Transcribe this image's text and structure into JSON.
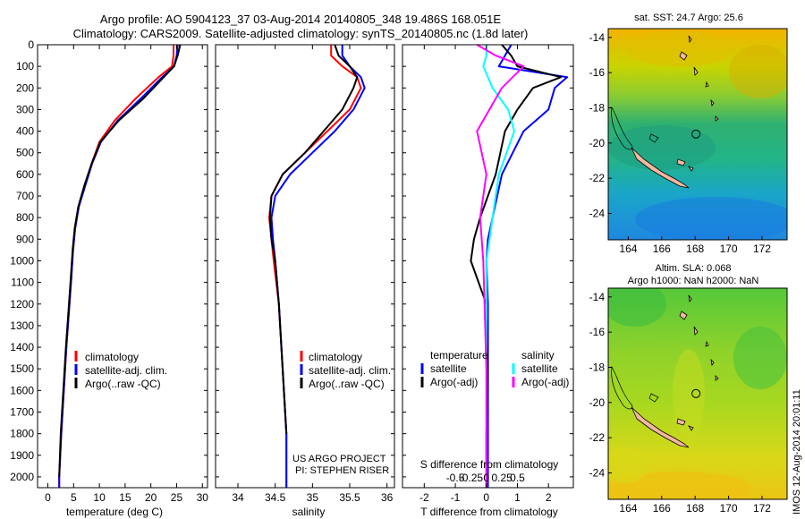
{
  "title": {
    "line1": "Argo profile: AO 5904123_37 03-Aug-2014 20140805_348 19.486S 168.051E",
    "line2": "Climatology: CARS2009. Satellite-adjusted climatology: synTS_20140805.nc (1.8d later)"
  },
  "depth_ticks": [
    0,
    100,
    200,
    300,
    400,
    500,
    600,
    700,
    800,
    900,
    1000,
    1100,
    1200,
    1300,
    1400,
    1500,
    1600,
    1700,
    1800,
    1900,
    2000
  ],
  "colors": {
    "climatology": "#ff0000",
    "satellite": "#0000ff",
    "argo": "#000000",
    "sal_satellite": "#00ffff",
    "sal_argo": "#ff00ff"
  },
  "chart_data": [
    {
      "type": "line",
      "xlabel": "temperature (deg C)",
      "xlim": [
        -2,
        31
      ],
      "xticks": [
        0,
        5,
        10,
        15,
        20,
        25,
        30
      ],
      "ylim": [
        2050,
        0
      ],
      "legend": {
        "placement": "center-left",
        "entries": [
          "climatology",
          "satellite-adj. clim.",
          "Argo(..raw -QC)"
        ]
      },
      "series": [
        {
          "name": "climatology",
          "color": "#ff0000",
          "x": [
            24.4,
            24.4,
            24.1,
            21.5,
            17.0,
            13.0,
            10.0,
            8.5,
            7.2,
            6.0,
            5.3,
            4.9,
            4.5,
            3.6,
            2.6,
            2.2,
            2.2
          ],
          "y": [
            0,
            50,
            100,
            150,
            250,
            350,
            450,
            550,
            650,
            750,
            850,
            950,
            1100,
            1400,
            1800,
            2000,
            2050
          ]
        },
        {
          "name": "satellite-adj. clim.",
          "color": "#0000ff",
          "x": [
            25.2,
            25.0,
            24.5,
            22.2,
            18.0,
            13.6,
            10.3,
            8.6,
            7.3,
            6.0,
            5.3,
            4.9,
            4.5,
            3.6,
            2.6,
            2.2,
            2.2
          ],
          "y": [
            0,
            50,
            100,
            150,
            250,
            350,
            450,
            550,
            650,
            750,
            850,
            950,
            1100,
            1400,
            1800,
            2000,
            2050
          ]
        },
        {
          "name": "Argo(..raw -QC)",
          "color": "#000000",
          "x": [
            25.7,
            25.2,
            24.5,
            22.5,
            18.5,
            13.8,
            10.2,
            8.5,
            7.1,
            5.9,
            5.2,
            4.8,
            4.4,
            3.5,
            2.5,
            2.2
          ],
          "y": [
            0,
            50,
            100,
            150,
            250,
            350,
            450,
            550,
            650,
            750,
            850,
            950,
            1100,
            1400,
            1800,
            2000
          ]
        }
      ]
    },
    {
      "type": "line",
      "xlabel": "salinity",
      "xlim": [
        33.7,
        36.1
      ],
      "xticks": [
        34,
        34.5,
        35,
        35.5,
        36
      ],
      "ylim": [
        2050,
        0
      ],
      "legend": {
        "placement": "center-right",
        "entries": [
          "climatology",
          "satellite-adj. clim.",
          "Argo(..raw -QC)"
        ]
      },
      "annotation": [
        "US ARGO PROJECT",
        "PI: STEPHEN RISER"
      ],
      "series": [
        {
          "name": "climatology",
          "color": "#ff0000",
          "x": [
            35.25,
            35.25,
            35.4,
            35.6,
            35.65,
            35.5,
            35.2,
            34.9,
            34.6,
            34.45,
            34.42,
            34.45,
            34.48,
            34.55,
            34.6,
            34.65,
            34.65
          ],
          "y": [
            0,
            50,
            100,
            150,
            200,
            300,
            400,
            500,
            600,
            700,
            800,
            900,
            1000,
            1200,
            1500,
            1800,
            2050
          ]
        },
        {
          "name": "satellite-adj. clim.",
          "color": "#0000ff",
          "x": [
            35.4,
            35.4,
            35.5,
            35.65,
            35.7,
            35.55,
            35.3,
            35.0,
            34.7,
            34.5,
            34.45,
            34.47,
            34.5,
            34.55,
            34.6,
            34.65,
            34.65
          ],
          "y": [
            0,
            50,
            100,
            150,
            200,
            300,
            400,
            500,
            600,
            700,
            800,
            900,
            1000,
            1200,
            1500,
            1800,
            2050
          ]
        },
        {
          "name": "Argo(..raw -QC)",
          "color": "#000000",
          "x": [
            35.3,
            35.35,
            35.5,
            35.6,
            35.55,
            35.4,
            35.15,
            34.9,
            34.6,
            34.45,
            34.43,
            34.45,
            34.5,
            34.55,
            34.6,
            34.65
          ],
          "y": [
            0,
            50,
            100,
            150,
            200,
            300,
            400,
            500,
            600,
            700,
            800,
            900,
            1000,
            1200,
            1500,
            1800
          ]
        }
      ]
    },
    {
      "type": "line",
      "xlabel": "T difference from climatology",
      "xlabel2": "S difference from climatology",
      "xlim": [
        -2.7,
        2.8
      ],
      "xticks": [
        -2,
        -1,
        0,
        1,
        2
      ],
      "xticks_s": [
        "-0.5",
        "-0.25",
        "0",
        "0.25",
        "0.5"
      ],
      "ylim": [
        2050,
        0
      ],
      "legend": {
        "placement": "center",
        "temperature_title": "temperature",
        "salinity_title": "salinity",
        "entries": [
          "satellite",
          "Argo(-adj)",
          "satellite",
          "Argo(-adj)"
        ]
      },
      "series": [
        {
          "name": "satellite",
          "color": "#0000ff",
          "x": [
            0.8,
            0.6,
            0.4,
            2.6,
            2.2,
            2.0,
            1.2,
            0.5,
            0.2,
            0.05,
            0.0,
            0.05,
            0.05,
            0.05,
            0.05
          ],
          "y": [
            0,
            50,
            100,
            150,
            200,
            300,
            400,
            600,
            800,
            900,
            1000,
            1200,
            1500,
            1800,
            2050
          ]
        },
        {
          "name": "Argo(-adj)",
          "color": "#000000",
          "x": [
            0.5,
            0.8,
            1.0,
            2.4,
            1.5,
            1.0,
            0.6,
            0.3,
            -0.2,
            -0.4,
            -0.5,
            0.0,
            0.05,
            0.0,
            0.0
          ],
          "y": [
            0,
            50,
            100,
            150,
            200,
            300,
            400,
            600,
            800,
            900,
            1000,
            1200,
            1500,
            1800,
            2050
          ]
        },
        {
          "name": "satellite",
          "color": "#00ffff",
          "x": [
            0.0,
            0.0,
            -0.1,
            0.2,
            0.7,
            0.9,
            0.4,
            0.2,
            0.0,
            0.0,
            0.0
          ],
          "y": [
            0,
            50,
            100,
            200,
            300,
            400,
            600,
            800,
            1000,
            1500,
            2050
          ]
        },
        {
          "name": "Argo(-adj)",
          "color": "#ff00ff",
          "x": [
            -0.3,
            0.3,
            1.2,
            0.5,
            -0.3,
            0.0,
            -0.2,
            -0.1,
            0.0,
            0.0
          ],
          "y": [
            0,
            50,
            100,
            200,
            400,
            600,
            800,
            1000,
            1500,
            2050
          ]
        }
      ]
    },
    {
      "type": "heatmap",
      "title": "sat. SST: 24.7 Argo: 25.6",
      "xticks": [
        164,
        166,
        168,
        170,
        172
      ],
      "yticks": [
        -14,
        -16,
        -18,
        -20,
        -22,
        -24
      ],
      "xlim": [
        162.8,
        173.5
      ],
      "ylim": [
        -25.5,
        -13.5
      ],
      "marker": {
        "lon": 168.05,
        "lat": -19.49
      }
    },
    {
      "type": "heatmap",
      "title": "Altim. SLA: 0.068",
      "subtitle": "Argo h1000: NaN h2000: NaN",
      "xticks": [
        164,
        166,
        168,
        170,
        172
      ],
      "yticks": [
        -14,
        -16,
        -18,
        -20,
        -22,
        -24
      ],
      "xlim": [
        162.8,
        173.5
      ],
      "ylim": [
        -25.5,
        -13.5
      ],
      "marker": {
        "lon": 168.05,
        "lat": -19.49
      }
    }
  ],
  "watermark": "IMOS 12-Aug-2014 20:01:11"
}
